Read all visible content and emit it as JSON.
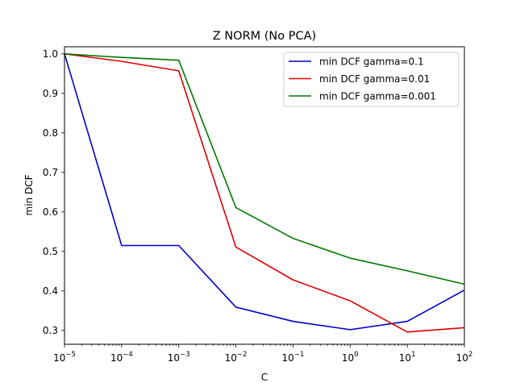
{
  "chart_data": {
    "type": "line",
    "title": "Z NORM (No PCA)",
    "xlabel": "C",
    "ylabel": "min DCF",
    "xscale": "log",
    "x": [
      1e-05,
      0.0001,
      0.001,
      0.01,
      0.1,
      1,
      10,
      100
    ],
    "x_tick_labels": [
      {
        "base": "10",
        "exp": "−5"
      },
      {
        "base": "10",
        "exp": "−4"
      },
      {
        "base": "10",
        "exp": "−3"
      },
      {
        "base": "10",
        "exp": "−2"
      },
      {
        "base": "10",
        "exp": "−1"
      },
      {
        "base": "10",
        "exp": "0"
      },
      {
        "base": "10",
        "exp": "1"
      },
      {
        "base": "10",
        "exp": "2"
      }
    ],
    "y_ticks": [
      "0.3",
      "0.4",
      "0.5",
      "0.6",
      "0.7",
      "0.8",
      "0.9",
      "1.0"
    ],
    "ylim": [
      0.265,
      1.018
    ],
    "legend_position": "top-right",
    "grid": false,
    "series": [
      {
        "name": "min DCF gamma=0.1",
        "color": "#0000cc",
        "values": [
          1.0,
          0.515,
          0.515,
          0.359,
          0.323,
          0.302,
          0.323,
          0.402
        ]
      },
      {
        "name": "min DCF gamma=0.01",
        "color": "#dd0000",
        "values": [
          1.0,
          0.981,
          0.957,
          0.511,
          0.428,
          0.375,
          0.296,
          0.307
        ]
      },
      {
        "name": "min DCF gamma=0.001",
        "color": "#007700",
        "values": [
          1.0,
          0.991,
          0.984,
          0.611,
          0.533,
          0.483,
          0.451,
          0.417
        ]
      }
    ]
  }
}
